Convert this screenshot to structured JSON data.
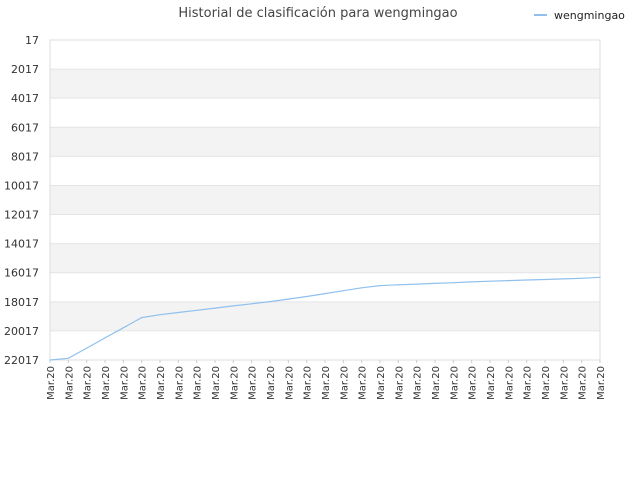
{
  "chart_data": {
    "type": "line",
    "title": "Historial de clasificación para wengmingao",
    "xlabel": "",
    "ylabel": "",
    "y_inverted": true,
    "ylim": [
      17,
      22017
    ],
    "y_ticks": [
      17,
      2017,
      4017,
      6017,
      8017,
      10017,
      12017,
      14017,
      16017,
      18017,
      20017,
      22017
    ],
    "y_tick_labels": [
      "17",
      "2017",
      "4017",
      "6017",
      "8017",
      "10017",
      "12017",
      "14017",
      "16017",
      "18017",
      "20017",
      "22017"
    ],
    "categories": [
      "Mar.20",
      "Mar.20",
      "Mar.20",
      "Mar.20",
      "Mar.20",
      "Mar.20",
      "Mar.20",
      "Mar.20",
      "Mar.20",
      "Mar.20",
      "Mar.20",
      "Mar.20",
      "Mar.20",
      "Mar.20",
      "Mar.20",
      "Mar.20",
      "Mar.20",
      "Mar.20",
      "Mar.20",
      "Mar.20",
      "Mar.20",
      "Mar.20",
      "Mar.20",
      "Mar.20",
      "Mar.20",
      "Mar.20",
      "Mar.20",
      "Mar.20",
      "Mar.20",
      "Mar.20",
      "Mar.20"
    ],
    "series": [
      {
        "name": "wengmingao",
        "color": "#90c0ee",
        "values": [
          22017,
          21900,
          21200,
          20500,
          19800,
          19100,
          18900,
          18750,
          18600,
          18450,
          18300,
          18150,
          18000,
          17830,
          17650,
          17450,
          17250,
          17050,
          16900,
          16850,
          16800,
          16750,
          16700,
          16650,
          16600,
          16560,
          16520,
          16480,
          16440,
          16400,
          16330
        ]
      }
    ],
    "grid": true,
    "alternate_bands": true,
    "legend_position": "top-right"
  }
}
